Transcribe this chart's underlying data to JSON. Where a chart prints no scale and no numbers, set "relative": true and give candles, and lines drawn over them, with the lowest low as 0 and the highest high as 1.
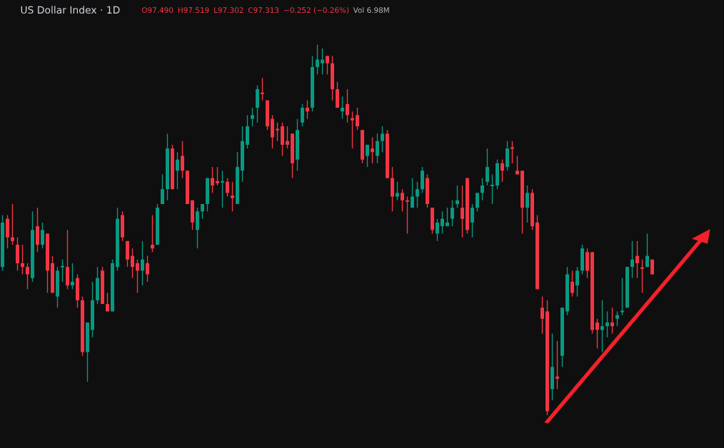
{
  "chart_data": {
    "type": "candlestick",
    "title": "US Dollar Index · 1D",
    "annotations": [
      "O97.490",
      "H97.519",
      "L97.302",
      "C97.313",
      "−0.252 (−0.26%)",
      "Vol 6.98M"
    ],
    "relative": true,
    "categories": [
      null,
      null,
      null,
      null,
      null,
      null,
      null,
      null,
      null,
      null,
      null,
      null,
      null,
      null,
      null,
      null,
      null,
      null,
      null,
      null,
      null,
      null,
      null,
      null,
      null,
      null,
      null,
      null,
      null,
      null,
      null,
      null,
      null,
      null,
      null,
      null,
      null,
      null,
      null,
      null,
      null,
      null,
      null,
      null,
      null,
      null,
      null,
      null,
      null,
      null,
      null,
      null,
      null,
      null,
      null,
      null,
      null,
      null,
      null,
      null,
      null,
      null,
      null,
      null,
      null,
      null,
      null,
      null,
      null,
      null,
      null,
      null,
      null,
      null,
      null,
      null,
      null,
      null,
      null,
      null,
      null,
      null,
      null,
      null,
      null,
      null,
      null,
      null,
      null,
      null,
      null,
      null,
      null,
      null,
      null,
      null,
      null,
      null,
      null,
      null,
      null,
      null,
      null,
      null,
      null,
      null,
      null,
      null,
      null,
      null,
      null,
      null,
      null,
      null,
      null,
      null,
      null,
      null,
      null,
      null,
      null,
      null,
      null,
      null,
      null,
      null,
      null,
      null,
      null,
      null,
      null
    ],
    "ohlc": [
      [
        0.4,
        0.54,
        0.39,
        0.52
      ],
      [
        0.53,
        0.54,
        0.45,
        0.48
      ],
      [
        0.48,
        0.57,
        0.46,
        0.47
      ],
      [
        0.46,
        0.48,
        0.39,
        0.41
      ],
      [
        0.41,
        0.46,
        0.38,
        0.4
      ],
      [
        0.4,
        0.41,
        0.34,
        0.38
      ],
      [
        0.37,
        0.55,
        0.36,
        0.5
      ],
      [
        0.51,
        0.56,
        0.44,
        0.46
      ],
      [
        0.46,
        0.52,
        0.45,
        0.5
      ],
      [
        0.49,
        0.49,
        0.33,
        0.39
      ],
      [
        0.41,
        0.43,
        0.33,
        0.33
      ],
      [
        0.32,
        0.4,
        0.29,
        0.39
      ],
      [
        0.401,
        0.42,
        0.36,
        0.403
      ],
      [
        0.4,
        0.5,
        0.34,
        0.35
      ],
      [
        0.35,
        0.41,
        0.34,
        0.36
      ],
      [
        0.37,
        0.38,
        0.29,
        0.31
      ],
      [
        0.31,
        0.32,
        0.16,
        0.17
      ],
      [
        0.17,
        0.25,
        0.09,
        0.25
      ],
      [
        0.23,
        0.36,
        0.21,
        0.31
      ],
      [
        0.31,
        0.4,
        0.3,
        0.37
      ],
      [
        0.39,
        0.4,
        0.3,
        0.3
      ],
      [
        0.3,
        0.33,
        0.28,
        0.28
      ],
      [
        0.28,
        0.42,
        0.28,
        0.41
      ],
      [
        0.4,
        0.56,
        0.39,
        0.53
      ],
      [
        0.54,
        0.55,
        0.47,
        0.48
      ],
      [
        0.47,
        0.47,
        0.4,
        0.42
      ],
      [
        0.43,
        0.45,
        0.37,
        0.4
      ],
      [
        0.41,
        0.42,
        0.33,
        0.39
      ],
      [
        0.39,
        0.47,
        0.35,
        0.42
      ],
      [
        0.41,
        0.43,
        0.36,
        0.38
      ],
      [
        0.46,
        0.54,
        0.44,
        0.45
      ],
      [
        0.46,
        0.57,
        0.46,
        0.56
      ],
      [
        0.57,
        0.65,
        0.57,
        0.61
      ],
      [
        0.61,
        0.76,
        0.58,
        0.72
      ],
      [
        0.72,
        0.73,
        0.61,
        0.61
      ],
      [
        0.66,
        0.71,
        0.61,
        0.69
      ],
      [
        0.7,
        0.74,
        0.64,
        0.66
      ],
      [
        0.66,
        0.66,
        0.57,
        0.57
      ],
      [
        0.58,
        0.58,
        0.5,
        0.52
      ],
      [
        0.5,
        0.56,
        0.45,
        0.55
      ],
      [
        0.55,
        0.57,
        0.53,
        0.57
      ],
      [
        0.57,
        0.64,
        0.55,
        0.64
      ],
      [
        0.64,
        0.67,
        0.6,
        0.62
      ],
      [
        0.632,
        0.67,
        0.62,
        0.626
      ],
      [
        0.63,
        0.66,
        0.56,
        0.63
      ],
      [
        0.63,
        0.64,
        0.59,
        0.6
      ],
      [
        0.593,
        0.63,
        0.55,
        0.586
      ],
      [
        0.57,
        0.71,
        0.57,
        0.67
      ],
      [
        0.66,
        0.78,
        0.63,
        0.74
      ],
      [
        0.73,
        0.81,
        0.72,
        0.78
      ],
      [
        0.8,
        0.83,
        0.78,
        0.81
      ],
      [
        0.83,
        0.89,
        0.79,
        0.88
      ],
      [
        0.871,
        0.91,
        0.85,
        0.867
      ],
      [
        0.85,
        0.85,
        0.77,
        0.78
      ],
      [
        0.8,
        0.81,
        0.72,
        0.75
      ],
      [
        0.773,
        0.79,
        0.74,
        0.769
      ],
      [
        0.78,
        0.79,
        0.7,
        0.73
      ],
      [
        0.74,
        0.78,
        0.72,
        0.73
      ],
      [
        0.76,
        0.76,
        0.64,
        0.68
      ],
      [
        0.69,
        0.8,
        0.66,
        0.77
      ],
      [
        0.79,
        0.84,
        0.78,
        0.83
      ],
      [
        0.83,
        0.85,
        0.8,
        0.82
      ],
      [
        0.83,
        0.97,
        0.82,
        0.94
      ],
      [
        0.94,
        1.0,
        0.92,
        0.96
      ],
      [
        0.95,
        0.99,
        0.92,
        0.96
      ],
      [
        0.97,
        0.97,
        0.92,
        0.95
      ],
      [
        0.95,
        0.97,
        0.85,
        0.88
      ],
      [
        0.88,
        0.9,
        0.83,
        0.83
      ],
      [
        0.82,
        0.86,
        0.8,
        0.83
      ],
      [
        0.84,
        0.88,
        0.79,
        0.81
      ],
      [
        0.802,
        0.82,
        0.72,
        0.796
      ],
      [
        0.81,
        0.83,
        0.77,
        0.78
      ],
      [
        0.77,
        0.77,
        0.68,
        0.69
      ],
      [
        0.7,
        0.73,
        0.67,
        0.73
      ],
      [
        0.72,
        0.75,
        0.68,
        0.71
      ],
      [
        0.7,
        0.76,
        0.68,
        0.74
      ],
      [
        0.74,
        0.78,
        0.71,
        0.76
      ],
      [
        0.76,
        0.77,
        0.64,
        0.64
      ],
      [
        0.64,
        0.67,
        0.55,
        0.59
      ],
      [
        0.59,
        0.63,
        0.58,
        0.6
      ],
      [
        0.6,
        0.61,
        0.55,
        0.58
      ],
      [
        0.58,
        0.59,
        0.49,
        0.578
      ],
      [
        0.56,
        0.64,
        0.56,
        0.59
      ],
      [
        0.59,
        0.63,
        0.56,
        0.61
      ],
      [
        0.61,
        0.67,
        0.6,
        0.66
      ],
      [
        0.64,
        0.65,
        0.56,
        0.57
      ],
      [
        0.56,
        0.56,
        0.49,
        0.5
      ],
      [
        0.49,
        0.53,
        0.47,
        0.52
      ],
      [
        0.51,
        0.55,
        0.49,
        0.53
      ],
      [
        0.51,
        0.56,
        0.51,
        0.52
      ],
      [
        0.53,
        0.58,
        0.51,
        0.56
      ],
      [
        0.57,
        0.62,
        0.56,
        0.58
      ],
      [
        0.56,
        0.62,
        0.48,
        0.53
      ],
      [
        0.64,
        0.64,
        0.49,
        0.5
      ],
      [
        0.52,
        0.57,
        0.48,
        0.56
      ],
      [
        0.56,
        0.6,
        0.55,
        0.6
      ],
      [
        0.6,
        0.64,
        0.58,
        0.62
      ],
      [
        0.63,
        0.72,
        0.62,
        0.67
      ],
      [
        0.62,
        0.65,
        0.57,
        0.62
      ],
      [
        0.62,
        0.69,
        0.61,
        0.68
      ],
      [
        0.68,
        0.69,
        0.63,
        0.66
      ],
      [
        0.67,
        0.74,
        0.66,
        0.72
      ],
      [
        0.724,
        0.74,
        0.68,
        0.721
      ],
      [
        0.66,
        0.7,
        0.65,
        0.65
      ],
      [
        0.66,
        0.66,
        0.49,
        0.56
      ],
      [
        0.56,
        0.62,
        0.52,
        0.6
      ],
      [
        0.6,
        0.61,
        0.5,
        0.51
      ],
      [
        0.52,
        0.54,
        0.34,
        0.34
      ],
      [
        0.29,
        0.32,
        0.22,
        0.26
      ],
      [
        0.28,
        0.31,
        0.0,
        0.01
      ],
      [
        0.07,
        0.22,
        0.04,
        0.13
      ],
      [
        0.104,
        0.2,
        0.07,
        0.098
      ],
      [
        0.16,
        0.29,
        0.13,
        0.29
      ],
      [
        0.28,
        0.4,
        0.27,
        0.38
      ],
      [
        0.36,
        0.39,
        0.32,
        0.33
      ],
      [
        0.35,
        0.4,
        0.32,
        0.39
      ],
      [
        0.39,
        0.46,
        0.38,
        0.45
      ],
      [
        0.44,
        0.45,
        0.37,
        0.39
      ],
      [
        0.44,
        0.44,
        0.22,
        0.23
      ],
      [
        0.25,
        0.26,
        0.18,
        0.23
      ],
      [
        0.23,
        0.31,
        0.17,
        0.24
      ],
      [
        0.24,
        0.28,
        0.21,
        0.25
      ],
      [
        0.25,
        0.29,
        0.22,
        0.24
      ],
      [
        0.26,
        0.28,
        0.24,
        0.27
      ],
      [
        0.28,
        0.37,
        0.27,
        0.28
      ],
      [
        0.29,
        0.4,
        0.29,
        0.4
      ],
      [
        0.4,
        0.47,
        0.37,
        0.42
      ],
      [
        0.43,
        0.47,
        0.37,
        0.41
      ],
      [
        0.399,
        0.42,
        0.33,
        0.397
      ],
      [
        0.4,
        0.49,
        0.4,
        0.43
      ],
      [
        0.42,
        0.42,
        0.38,
        0.38
      ]
    ],
    "colors": [
      "#089981",
      "#f23645",
      "#f23645",
      "#f23645",
      "#f23645",
      "#f23645",
      "#089981",
      "#f23645",
      "#089981",
      "#f23645",
      "#f23645",
      "#089981",
      "#089981",
      "#f23645",
      "#089981",
      "#f23645",
      "#f23645",
      "#089981",
      "#089981",
      "#089981",
      "#f23645",
      "#f23645",
      "#089981",
      "#089981",
      "#f23645",
      "#f23645",
      "#f23645",
      "#f23645",
      "#089981",
      "#f23645",
      "#f23645",
      "#089981",
      "#089981",
      "#089981",
      "#f23645",
      "#089981",
      "#f23645",
      "#f23645",
      "#f23645",
      "#089981",
      "#089981",
      "#089981",
      "#f23645",
      "#f23645",
      "#089981",
      "#f23645",
      "#f23645",
      "#089981",
      "#089981",
      "#089981",
      "#089981",
      "#089981",
      "#f23645",
      "#f23645",
      "#f23645",
      "#f23645",
      "#f23645",
      "#f23645",
      "#f23645",
      "#089981",
      "#089981",
      "#f23645",
      "#089981",
      "#089981",
      "#089981",
      "#f23645",
      "#f23645",
      "#f23645",
      "#089981",
      "#f23645",
      "#f23645",
      "#f23645",
      "#f23645",
      "#089981",
      "#f23645",
      "#089981",
      "#089981",
      "#f23645",
      "#f23645",
      "#089981",
      "#f23645",
      "#f23645",
      "#089981",
      "#089981",
      "#089981",
      "#f23645",
      "#f23645",
      "#089981",
      "#089981",
      "#089981",
      "#089981",
      "#089981",
      "#f23645",
      "#f23645",
      "#089981",
      "#089981",
      "#089981",
      "#089981",
      "#089981",
      "#089981",
      "#f23645",
      "#089981",
      "#f23645",
      "#f23645",
      "#f23645",
      "#089981",
      "#f23645",
      "#f23645",
      "#f23645",
      "#f23645",
      "#089981",
      "#f23645",
      "#089981",
      "#089981",
      "#f23645",
      "#089981",
      "#089981",
      "#f23645",
      "#f23645",
      "#f23645",
      "#089981",
      "#089981",
      "#f23645",
      "#089981",
      "#089981",
      "#089981",
      "#089981",
      "#f23645",
      "#f23645",
      "#089981",
      "#f23645"
    ]
  }
}
